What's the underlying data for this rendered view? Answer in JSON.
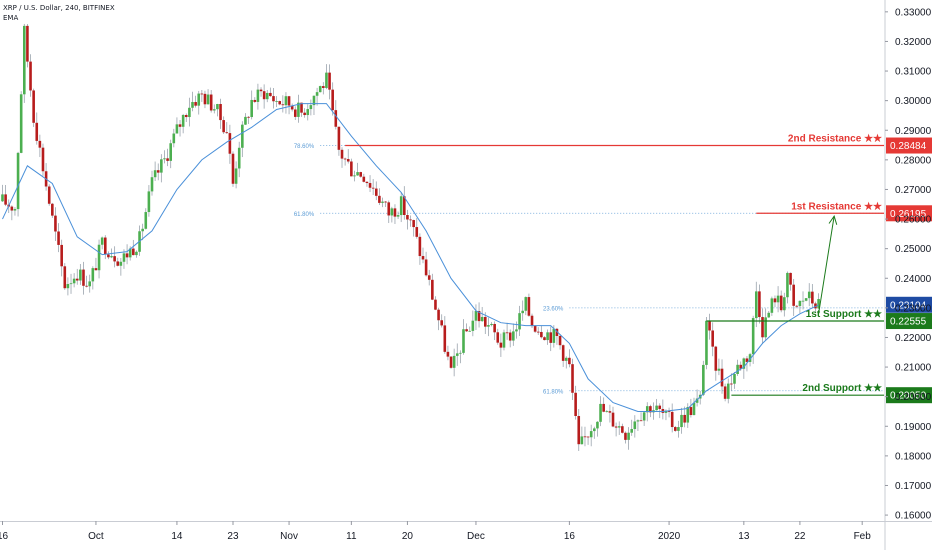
{
  "header": {
    "symbol": "XRP / U.S. Dollar, 240, BITFINEX",
    "indicator": "EMA"
  },
  "colors": {
    "up": "#26a69a",
    "down": "#d32f2f",
    "candle_body_up": "#4caf50",
    "candle_body_down": "#b71c1c",
    "ema": "#4a90d9",
    "resistance": "#e53935",
    "support": "#1b7a1b",
    "fib_line": "#5b9bd5",
    "current_price_bg": "#1e4ba3",
    "axis_text": "#131722",
    "grid": "#e1e3e8"
  },
  "chart_data": {
    "type": "candlestick",
    "title": "XRP / U.S. Dollar, 240, BITFINEX",
    "y_axis": {
      "ticks": [
        "0.33000",
        "0.32000",
        "0.31000",
        "0.30000",
        "0.29000",
        "0.28000",
        "0.27000",
        "0.26000",
        "0.25000",
        "0.24000",
        "0.23000",
        "0.22000",
        "0.21000",
        "0.20000",
        "0.19000",
        "0.18000",
        "0.17000",
        "0.16000"
      ],
      "range": [
        0.158,
        0.334
      ],
      "side": "right"
    },
    "x_axis": {
      "ticks": [
        {
          "label": "16",
          "t": 0
        },
        {
          "label": "Oct",
          "t": 15
        },
        {
          "label": "14",
          "t": 28
        },
        {
          "label": "23",
          "t": 37
        },
        {
          "label": "Nov",
          "t": 46
        },
        {
          "label": "11",
          "t": 56
        },
        {
          "label": "20",
          "t": 65
        },
        {
          "label": "Dec",
          "t": 76
        },
        {
          "label": "16",
          "t": 91
        },
        {
          "label": "2020",
          "t": 107
        },
        {
          "label": "13",
          "t": 119
        },
        {
          "label": "22",
          "t": 128
        },
        {
          "label": "Feb",
          "t": 138
        }
      ],
      "range": [
        -0.4,
        141.5
      ]
    },
    "price_path": [
      [
        0,
        0.266
      ],
      [
        2,
        0.264
      ],
      [
        3.5,
        0.323
      ],
      [
        5,
        0.295
      ],
      [
        8,
        0.26
      ],
      [
        10,
        0.238
      ],
      [
        12,
        0.242
      ],
      [
        14,
        0.238
      ],
      [
        16,
        0.252
      ],
      [
        19,
        0.246
      ],
      [
        22,
        0.253
      ],
      [
        24,
        0.272
      ],
      [
        26,
        0.28
      ],
      [
        28,
        0.29
      ],
      [
        30,
        0.299
      ],
      [
        32,
        0.302
      ],
      [
        34,
        0.298
      ],
      [
        36,
        0.29
      ],
      [
        37,
        0.272
      ],
      [
        38,
        0.286
      ],
      [
        40,
        0.3
      ],
      [
        42,
        0.303
      ],
      [
        44,
        0.3
      ],
      [
        46,
        0.299
      ],
      [
        48,
        0.296
      ],
      [
        50,
        0.302
      ],
      [
        52,
        0.307
      ],
      [
        53,
        0.295
      ],
      [
        54,
        0.283
      ],
      [
        56,
        0.277
      ],
      [
        58,
        0.275
      ],
      [
        60,
        0.269
      ],
      [
        62,
        0.262
      ],
      [
        64,
        0.265
      ],
      [
        66,
        0.256
      ],
      [
        68,
        0.242
      ],
      [
        70,
        0.226
      ],
      [
        72,
        0.208
      ],
      [
        74,
        0.22
      ],
      [
        76,
        0.228
      ],
      [
        78,
        0.224
      ],
      [
        80,
        0.218
      ],
      [
        82,
        0.222
      ],
      [
        84,
        0.231
      ],
      [
        85,
        0.225
      ],
      [
        87,
        0.222
      ],
      [
        89,
        0.22
      ],
      [
        91,
        0.21
      ],
      [
        92.5,
        0.182
      ],
      [
        94,
        0.188
      ],
      [
        96,
        0.196
      ],
      [
        98,
        0.192
      ],
      [
        100,
        0.188
      ],
      [
        102,
        0.194
      ],
      [
        104,
        0.197
      ],
      [
        106,
        0.194
      ],
      [
        108,
        0.19
      ],
      [
        110,
        0.195
      ],
      [
        112,
        0.199
      ],
      [
        113,
        0.226
      ],
      [
        114,
        0.214
      ],
      [
        116,
        0.202
      ],
      [
        118,
        0.21
      ],
      [
        120,
        0.215
      ],
      [
        121,
        0.236
      ],
      [
        122,
        0.223
      ],
      [
        124,
        0.234
      ],
      [
        125,
        0.23
      ],
      [
        126,
        0.242
      ],
      [
        127,
        0.229
      ],
      [
        129,
        0.234
      ],
      [
        131,
        0.231
      ]
    ],
    "ema_path": [
      [
        0,
        0.26
      ],
      [
        4,
        0.278
      ],
      [
        8,
        0.272
      ],
      [
        12,
        0.254
      ],
      [
        16,
        0.248
      ],
      [
        20,
        0.249
      ],
      [
        24,
        0.256
      ],
      [
        28,
        0.27
      ],
      [
        32,
        0.28
      ],
      [
        36,
        0.286
      ],
      [
        40,
        0.291
      ],
      [
        44,
        0.297
      ],
      [
        48,
        0.299
      ],
      [
        52,
        0.299
      ],
      [
        56,
        0.288
      ],
      [
        60,
        0.278
      ],
      [
        64,
        0.269
      ],
      [
        68,
        0.256
      ],
      [
        72,
        0.24
      ],
      [
        76,
        0.229
      ],
      [
        80,
        0.225
      ],
      [
        84,
        0.224
      ],
      [
        88,
        0.224
      ],
      [
        91,
        0.218
      ],
      [
        94,
        0.206
      ],
      [
        98,
        0.198
      ],
      [
        102,
        0.195
      ],
      [
        106,
        0.195
      ],
      [
        110,
        0.196
      ],
      [
        113,
        0.202
      ],
      [
        116,
        0.206
      ],
      [
        119,
        0.21
      ],
      [
        122,
        0.218
      ],
      [
        125,
        0.224
      ],
      [
        128,
        0.228
      ],
      [
        131,
        0.231
      ]
    ],
    "horizontal_levels": [
      {
        "name": "2nd Resistance ★★",
        "value": 0.28484,
        "label": "0.28484",
        "type": "resistance",
        "style": "solid",
        "from_t": 55
      },
      {
        "name": "1st Resistance ★★",
        "value": 0.26195,
        "label": "0.26195",
        "type": "resistance",
        "style": "solid",
        "from_t": 121
      },
      {
        "name": "1st Support ★★",
        "value": 0.22555,
        "label": "0.22555",
        "type": "support",
        "style": "solid",
        "from_t": 113
      },
      {
        "name": "2nd Support ★★",
        "value": 0.2005,
        "label": "0.20050",
        "type": "support",
        "style": "solid",
        "from_t": 117
      }
    ],
    "current_price": {
      "value": 0.23104,
      "label": "0.23104"
    },
    "fib_levels": [
      {
        "label": "78.60%",
        "value": 0.28484,
        "from_t": 51
      },
      {
        "label": "61.80%",
        "value": 0.26195,
        "from_t": 51
      },
      {
        "label": "23.60%",
        "value": 0.23,
        "from_t": 91
      },
      {
        "label": "61.80%",
        "value": 0.202,
        "from_t": 91
      }
    ],
    "arrow": {
      "from": [
        131,
        0.228
      ],
      "to": [
        133.5,
        0.261
      ]
    },
    "grid": false,
    "legend": "none"
  }
}
